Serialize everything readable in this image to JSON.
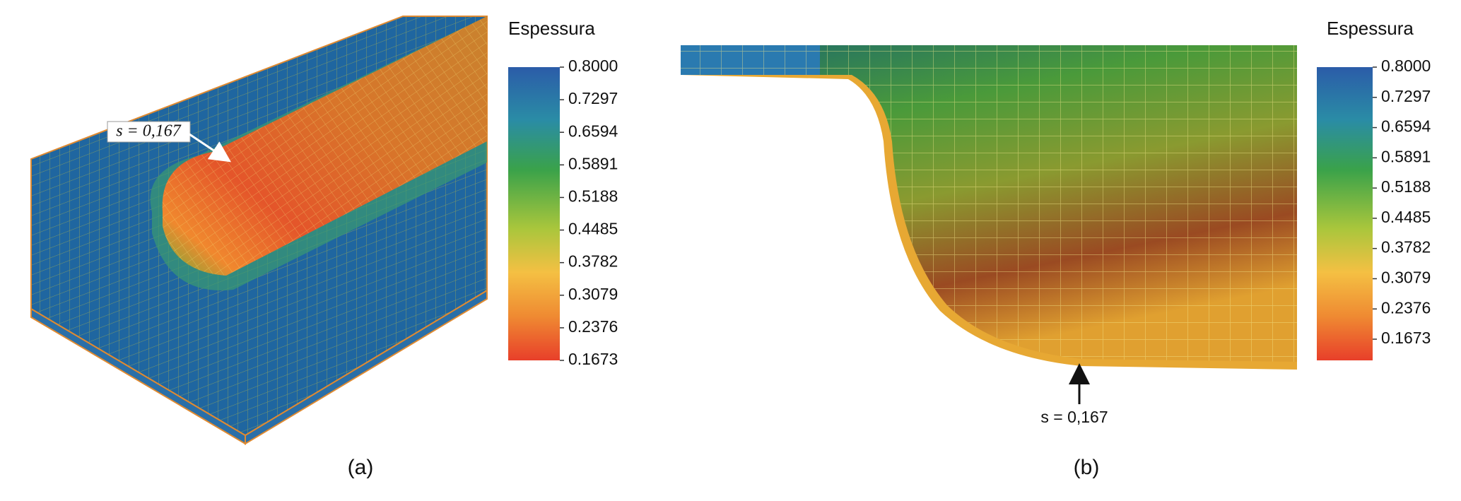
{
  "panels": [
    {
      "annotation": "s = 0,167",
      "caption": "(a)",
      "colorbar": {
        "title": "Espessura",
        "ticks": [
          {
            "value": 0.8,
            "label": "0.8000"
          },
          {
            "value": 0.7297,
            "label": "0.7297"
          },
          {
            "value": 0.6594,
            "label": "0.6594"
          },
          {
            "value": 0.5891,
            "label": "0.5891"
          },
          {
            "value": 0.5188,
            "label": "0.5188"
          },
          {
            "value": 0.4485,
            "label": "0.4485"
          },
          {
            "value": 0.3782,
            "label": "0.3782"
          },
          {
            "value": 0.3079,
            "label": "0.3079"
          },
          {
            "value": 0.2376,
            "label": "0.2376"
          },
          {
            "value": 0.1673,
            "label": "0.1673"
          }
        ]
      }
    },
    {
      "annotation": "s = 0,167",
      "caption": "(b)",
      "colorbar": {
        "title": "Espessura",
        "ticks": [
          {
            "value": 0.8,
            "label": "0.8000"
          },
          {
            "value": 0.7297,
            "label": "0.7297"
          },
          {
            "value": 0.6594,
            "label": "0.6594"
          },
          {
            "value": 0.5891,
            "label": "0.5891"
          },
          {
            "value": 0.5188,
            "label": "0.5188"
          },
          {
            "value": 0.4485,
            "label": "0.4485"
          },
          {
            "value": 0.3782,
            "label": "0.3782"
          },
          {
            "value": 0.3079,
            "label": "0.3079"
          },
          {
            "value": 0.2376,
            "label": "0.2376"
          },
          {
            "value": 0.1673,
            "label": "0.1673"
          }
        ]
      }
    }
  ]
}
